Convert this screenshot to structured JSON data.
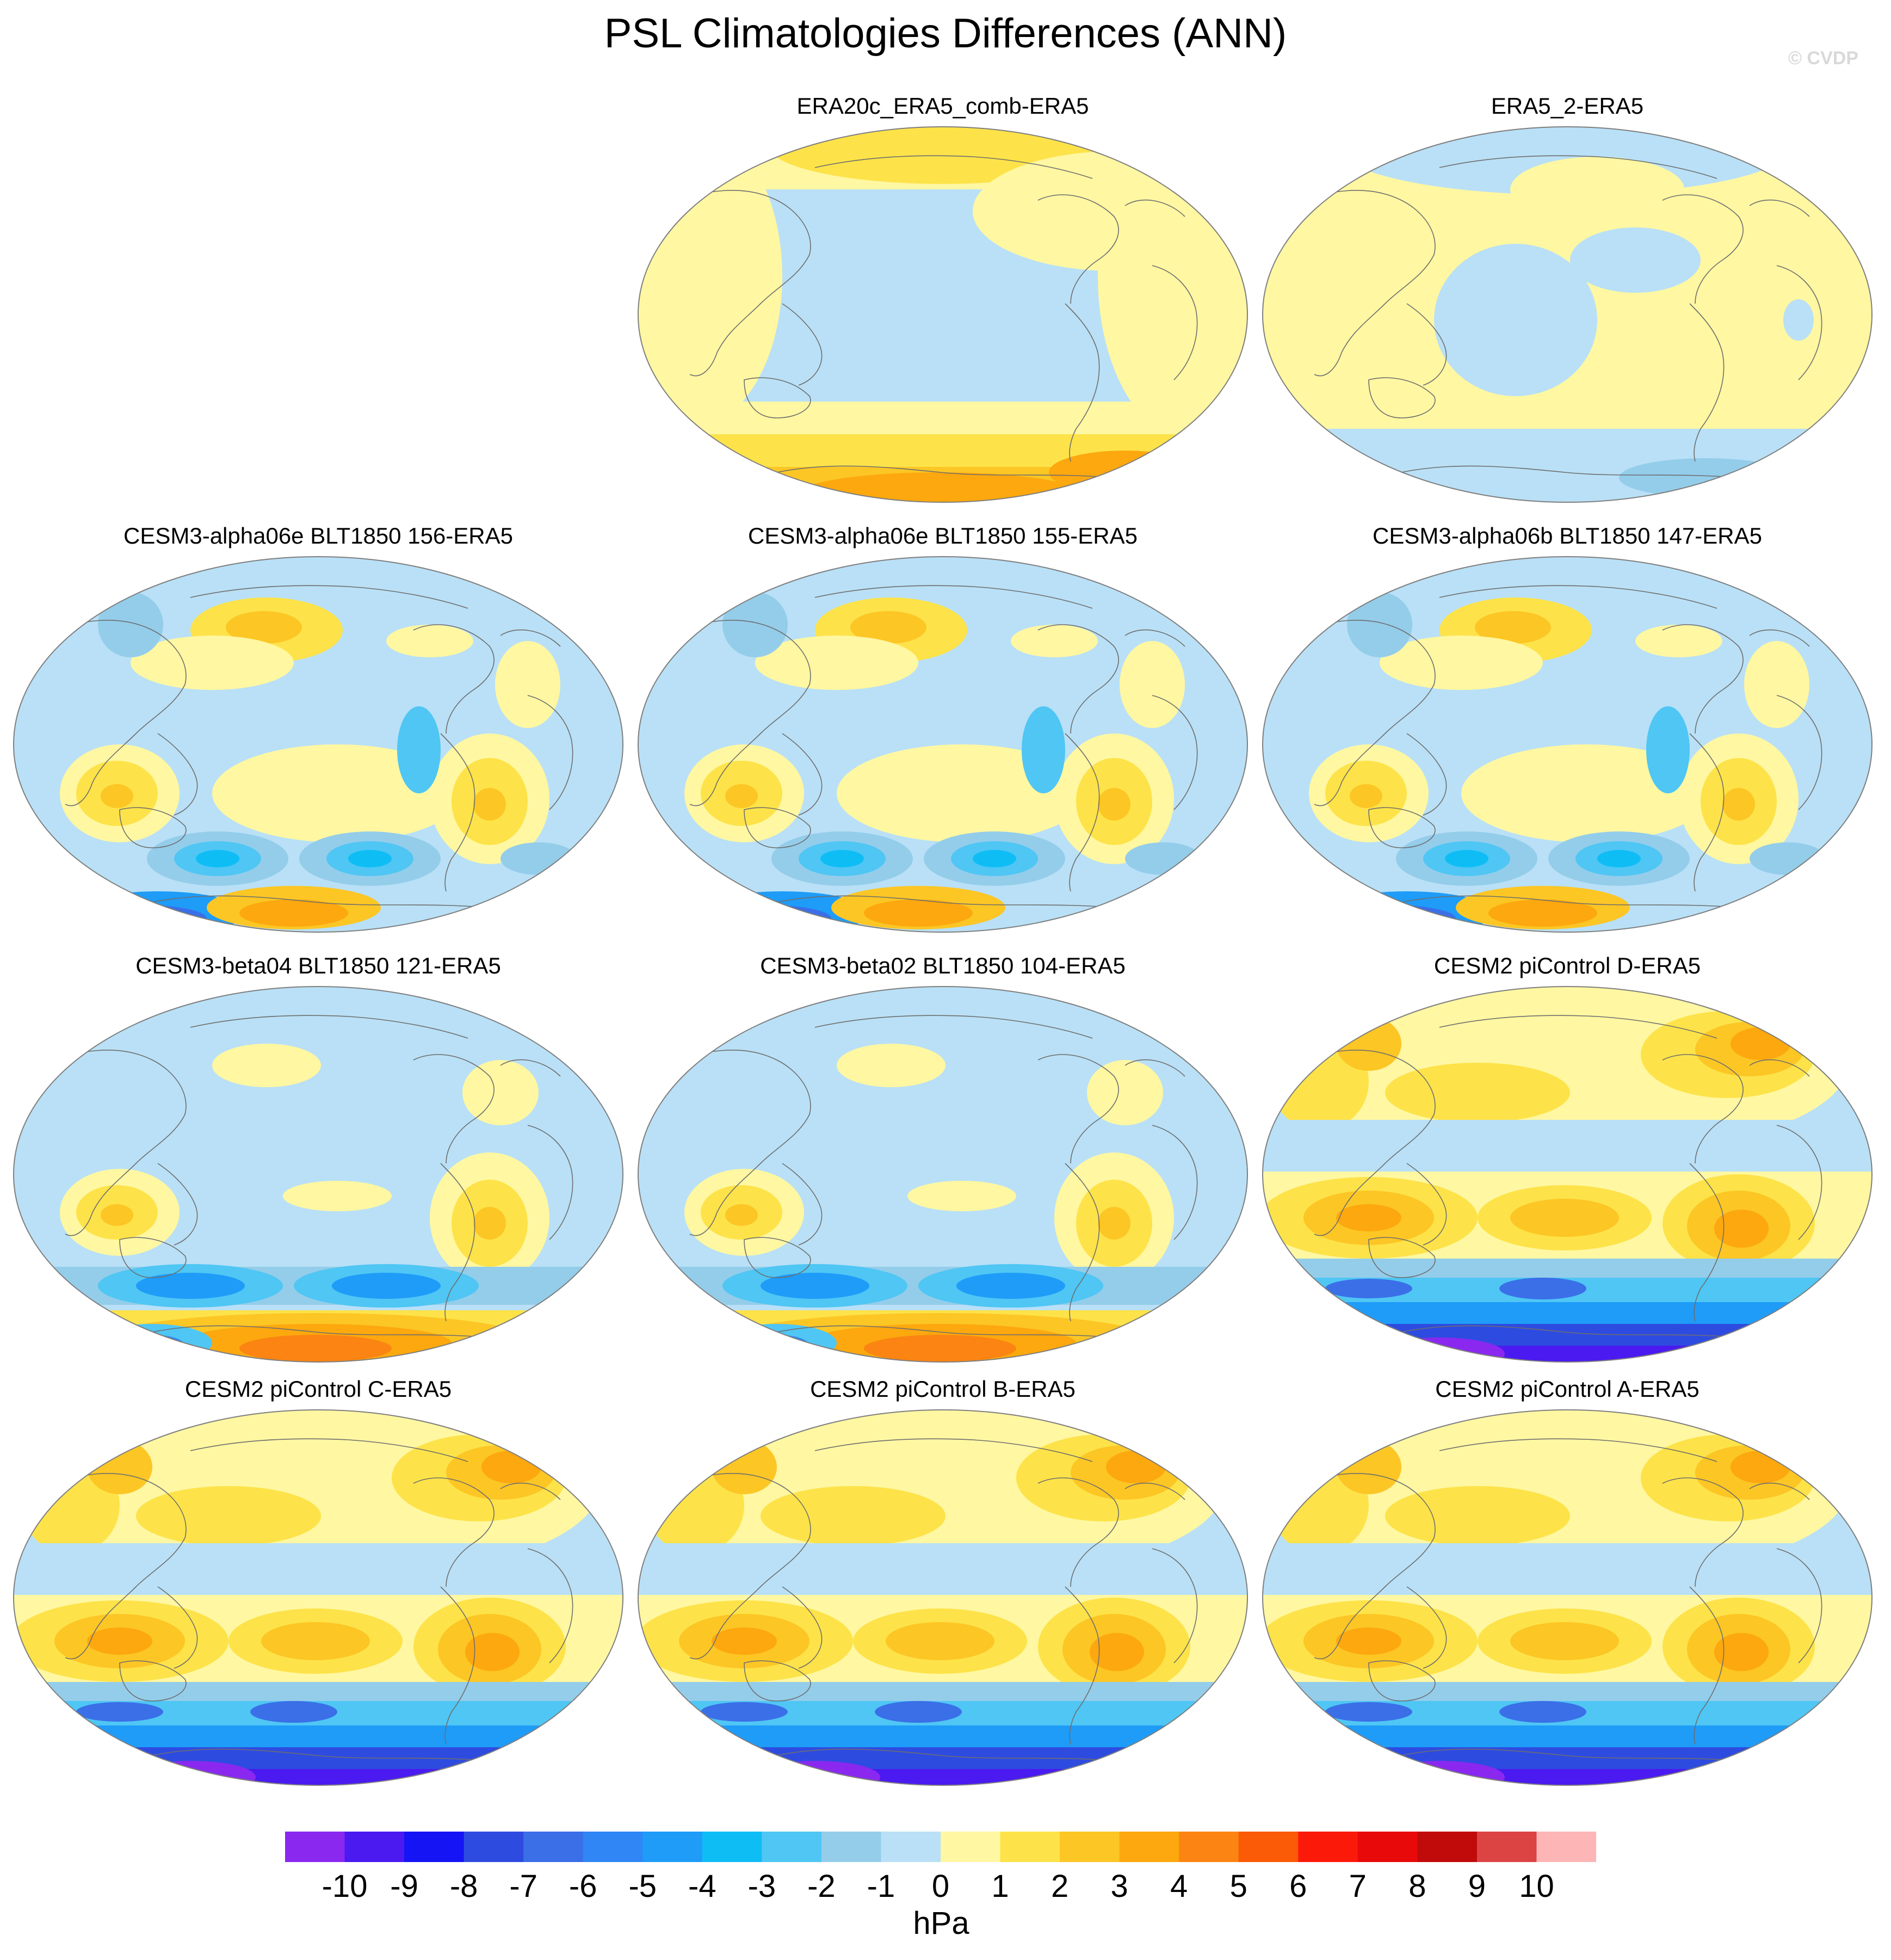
{
  "title": "PSL Climatologies Differences (ANN)",
  "watermark": "© CVDP",
  "panels": [
    {
      "title": "ERA20c_ERA5_comb-ERA5",
      "pattern": "era20c",
      "row": 0,
      "col": 1
    },
    {
      "title": "ERA5_2-ERA5",
      "pattern": "era5_2",
      "row": 0,
      "col": 2
    },
    {
      "title": "CESM3-alpha06e BLT1850 156-ERA5",
      "pattern": "cesm3",
      "row": 1,
      "col": 0
    },
    {
      "title": "CESM3-alpha06e BLT1850 155-ERA5",
      "pattern": "cesm3",
      "row": 1,
      "col": 1
    },
    {
      "title": "CESM3-alpha06b BLT1850 147-ERA5",
      "pattern": "cesm3",
      "row": 1,
      "col": 2
    },
    {
      "title": "CESM3-beta04 BLT1850 121-ERA5",
      "pattern": "cesm3beta",
      "row": 2,
      "col": 0
    },
    {
      "title": "CESM3-beta02 BLT1850 104-ERA5",
      "pattern": "cesm3beta",
      "row": 2,
      "col": 1
    },
    {
      "title": "CESM2 piControl D-ERA5",
      "pattern": "cesm2",
      "row": 2,
      "col": 2
    },
    {
      "title": "CESM2 piControl C-ERA5",
      "pattern": "cesm2",
      "row": 3,
      "col": 0
    },
    {
      "title": "CESM2 piControl B-ERA5",
      "pattern": "cesm2",
      "row": 3,
      "col": 1
    },
    {
      "title": "CESM2 piControl A-ERA5",
      "pattern": "cesm2",
      "row": 3,
      "col": 2
    }
  ],
  "colorbar": {
    "units": "hPa",
    "labels": [
      "-10",
      "-9",
      "-8",
      "-7",
      "-6",
      "-5",
      "-4",
      "-3",
      "-2",
      "-1",
      "0",
      "1",
      "2",
      "3",
      "4",
      "5",
      "6",
      "7",
      "8",
      "9",
      "10"
    ],
    "colors": [
      "#8a28f0",
      "#4a1af0",
      "#1414f5",
      "#2e4be0",
      "#3a6fe8",
      "#2f86f4",
      "#1e9cf8",
      "#0fbdf5",
      "#4fc6f4",
      "#94cdea",
      "#b9e0f6",
      "#fff7a2",
      "#fde349",
      "#fcc625",
      "#fca80e",
      "#fb8412",
      "#fb5a06",
      "#fb1a0a",
      "#e80a0a",
      "#c10a0a",
      "#dc4444",
      "#fdb5b5"
    ]
  }
}
